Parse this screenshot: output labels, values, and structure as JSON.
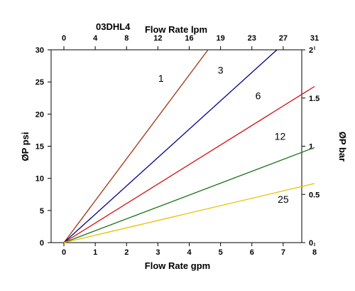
{
  "chart_data": {
    "type": "line",
    "header_code": "03DHL4",
    "xlabel": "Flow Rate gpm",
    "x2label": "Flow Rate lpm",
    "ylabel": "ØP psi",
    "y2label": "ØP bar",
    "xlim": [
      0,
      8
    ],
    "ylim": [
      0,
      30
    ],
    "y2lim": [
      0,
      2
    ],
    "x_ticks": [
      "0",
      "1",
      "2",
      "3",
      "4",
      "5",
      "6",
      "7",
      "8"
    ],
    "x2_ticks": [
      "0",
      "4",
      "8",
      "12",
      "16",
      "19",
      "23",
      "27",
      "31"
    ],
    "y_ticks": [
      "0",
      "5",
      "10",
      "15",
      "20",
      "25",
      "30"
    ],
    "y2_ticks": [
      "0",
      "0.5",
      "1",
      "1.5",
      "2"
    ],
    "grid": false,
    "series": [
      {
        "name": "1",
        "color": "#a0320a",
        "x": [
          0,
          4.6
        ],
        "y": [
          0,
          30
        ],
        "label_at": [
          3.1,
          25.0
        ]
      },
      {
        "name": "3",
        "color": "#00008c",
        "x": [
          0,
          6.8
        ],
        "y": [
          0,
          30
        ],
        "label_at": [
          5.0,
          26.3
        ]
      },
      {
        "name": "6",
        "color": "#d01010",
        "x": [
          0,
          8
        ],
        "y": [
          0,
          24.3
        ],
        "label_at": [
          6.2,
          22.3
        ]
      },
      {
        "name": "12",
        "color": "#157015",
        "x": [
          0,
          8
        ],
        "y": [
          0,
          14.8
        ],
        "label_at": [
          6.9,
          16.0
        ]
      },
      {
        "name": "25",
        "color": "#e8c000",
        "x": [
          0,
          8
        ],
        "y": [
          0,
          9.2
        ],
        "label_at": [
          7.0,
          6.2
        ]
      }
    ]
  }
}
